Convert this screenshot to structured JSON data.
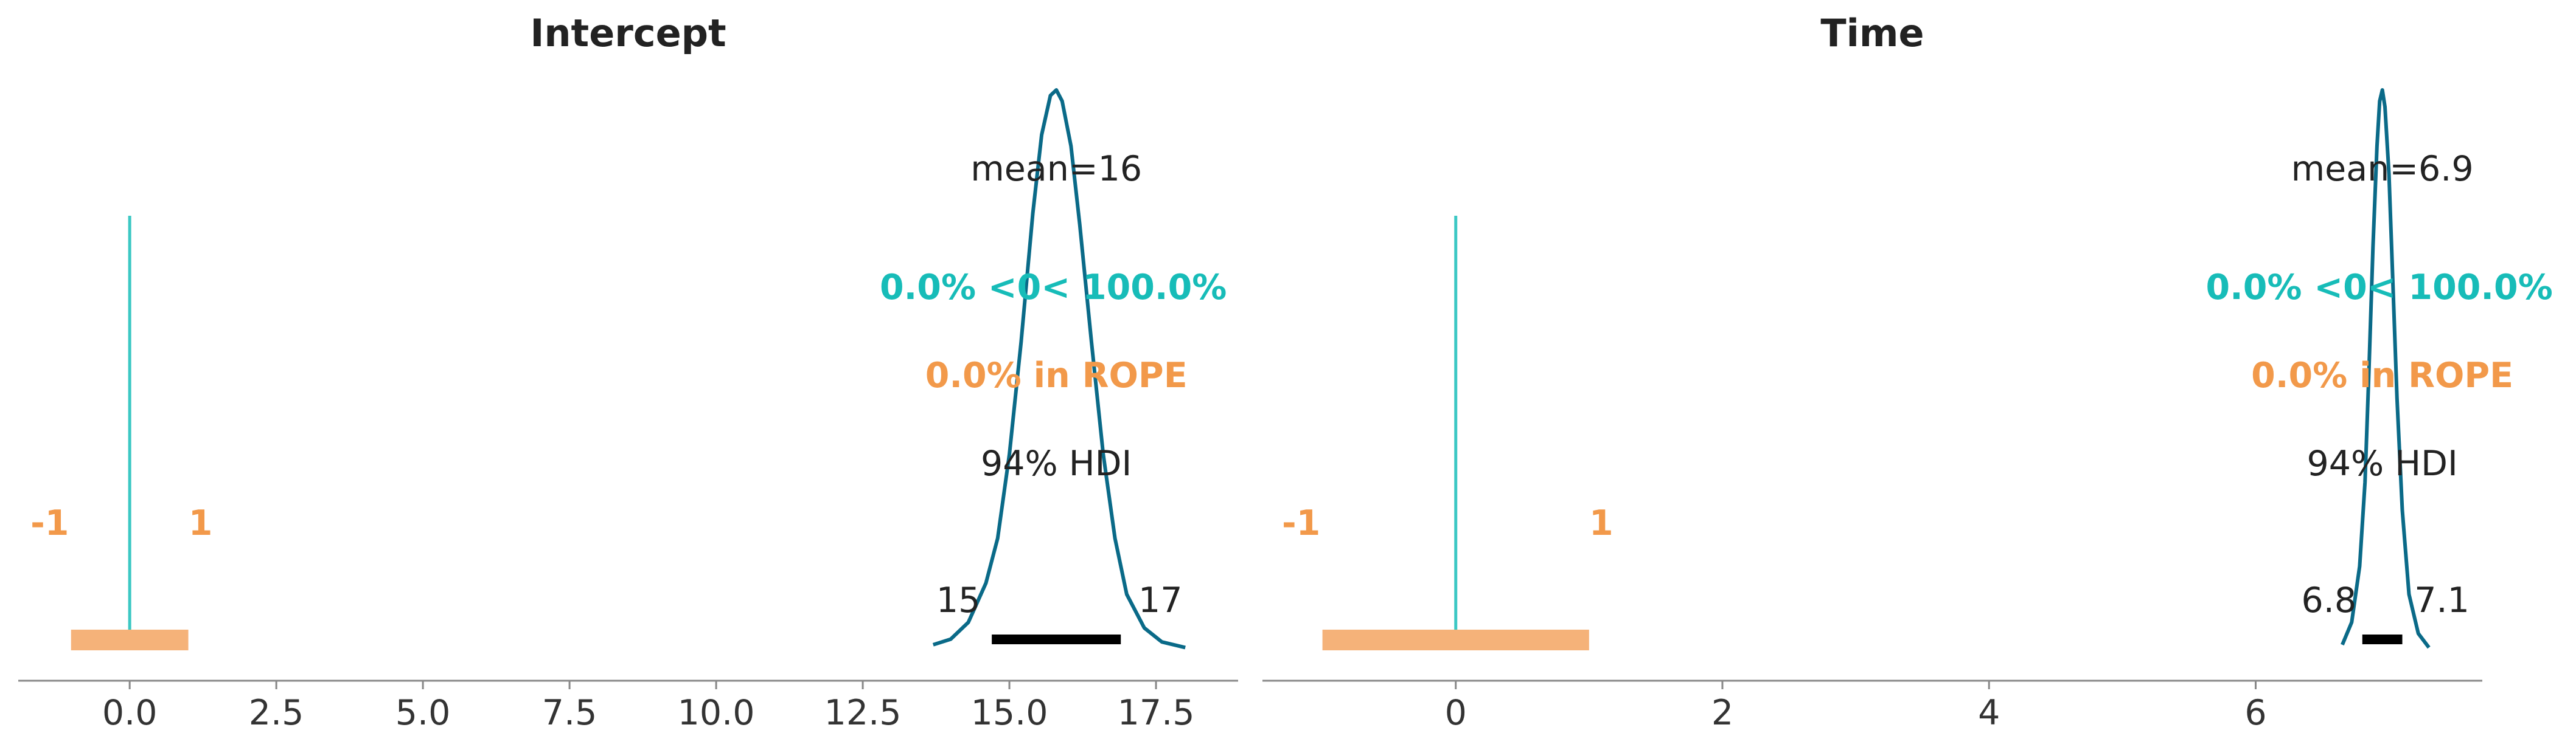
{
  "chart_data": [
    {
      "type": "posterior-density",
      "title": "Intercept",
      "mean_label": "mean=16",
      "ref_label": "0.0% <0< 100.0%",
      "rope_label": "0.0% in ROPE",
      "hdi_label": "94% HDI",
      "hdi": [
        14.7,
        16.9
      ],
      "hdi_tick_labels": [
        "15",
        "17"
      ],
      "rope": [
        -1,
        1
      ],
      "rope_tick_labels": [
        "-1",
        "1"
      ],
      "ref_val": 0,
      "xlim": [
        -1.9,
        18.9
      ],
      "xticks": [
        0.0,
        2.5,
        5.0,
        7.5,
        10.0,
        12.5,
        15.0,
        17.5
      ],
      "xtick_labels": [
        "0.0",
        "2.5",
        "5.0",
        "7.5",
        "10.0",
        "12.5",
        "15.0",
        "17.5"
      ],
      "density": {
        "x": [
          13.7,
          14.0,
          14.3,
          14.6,
          14.8,
          15.0,
          15.2,
          15.4,
          15.55,
          15.7,
          15.8,
          15.9,
          16.05,
          16.2,
          16.4,
          16.6,
          16.8,
          17.0,
          17.3,
          17.6,
          18.0
        ],
        "y": [
          0.01,
          0.02,
          0.05,
          0.12,
          0.2,
          0.35,
          0.55,
          0.78,
          0.92,
          0.99,
          1.0,
          0.98,
          0.9,
          0.76,
          0.55,
          0.35,
          0.2,
          0.1,
          0.04,
          0.015,
          0.005
        ]
      }
    },
    {
      "type": "posterior-density",
      "title": "Time",
      "mean_label": "mean=6.9",
      "ref_label": "0.0% <0< 100.0%",
      "rope_label": "0.0% in ROPE",
      "hdi_label": "94% HDI",
      "hdi": [
        6.8,
        7.1
      ],
      "hdi_tick_labels": [
        "6.8",
        "7.1"
      ],
      "rope": [
        -1,
        1
      ],
      "rope_tick_labels": [
        "-1",
        "1"
      ],
      "ref_val": 0,
      "xlim": [
        -1.45,
        7.7
      ],
      "xticks": [
        0,
        2,
        4,
        6
      ],
      "xtick_labels": [
        "0",
        "2",
        "4",
        "6"
      ],
      "density": {
        "x": [
          6.65,
          6.72,
          6.78,
          6.82,
          6.85,
          6.88,
          6.91,
          6.93,
          6.95,
          6.97,
          7.0,
          7.03,
          7.06,
          7.1,
          7.15,
          7.22,
          7.3
        ],
        "y": [
          0.01,
          0.05,
          0.15,
          0.3,
          0.5,
          0.72,
          0.9,
          0.98,
          1.0,
          0.97,
          0.85,
          0.65,
          0.45,
          0.25,
          0.1,
          0.03,
          0.005
        ]
      }
    }
  ],
  "colors": {
    "density": "#0a6a88",
    "ref": "#3cc8c4",
    "ref_text": "#17bcb8",
    "rope": "#f5b279",
    "rope_text": "#f2994a",
    "hdi": "#000000",
    "axis": "#888888"
  }
}
